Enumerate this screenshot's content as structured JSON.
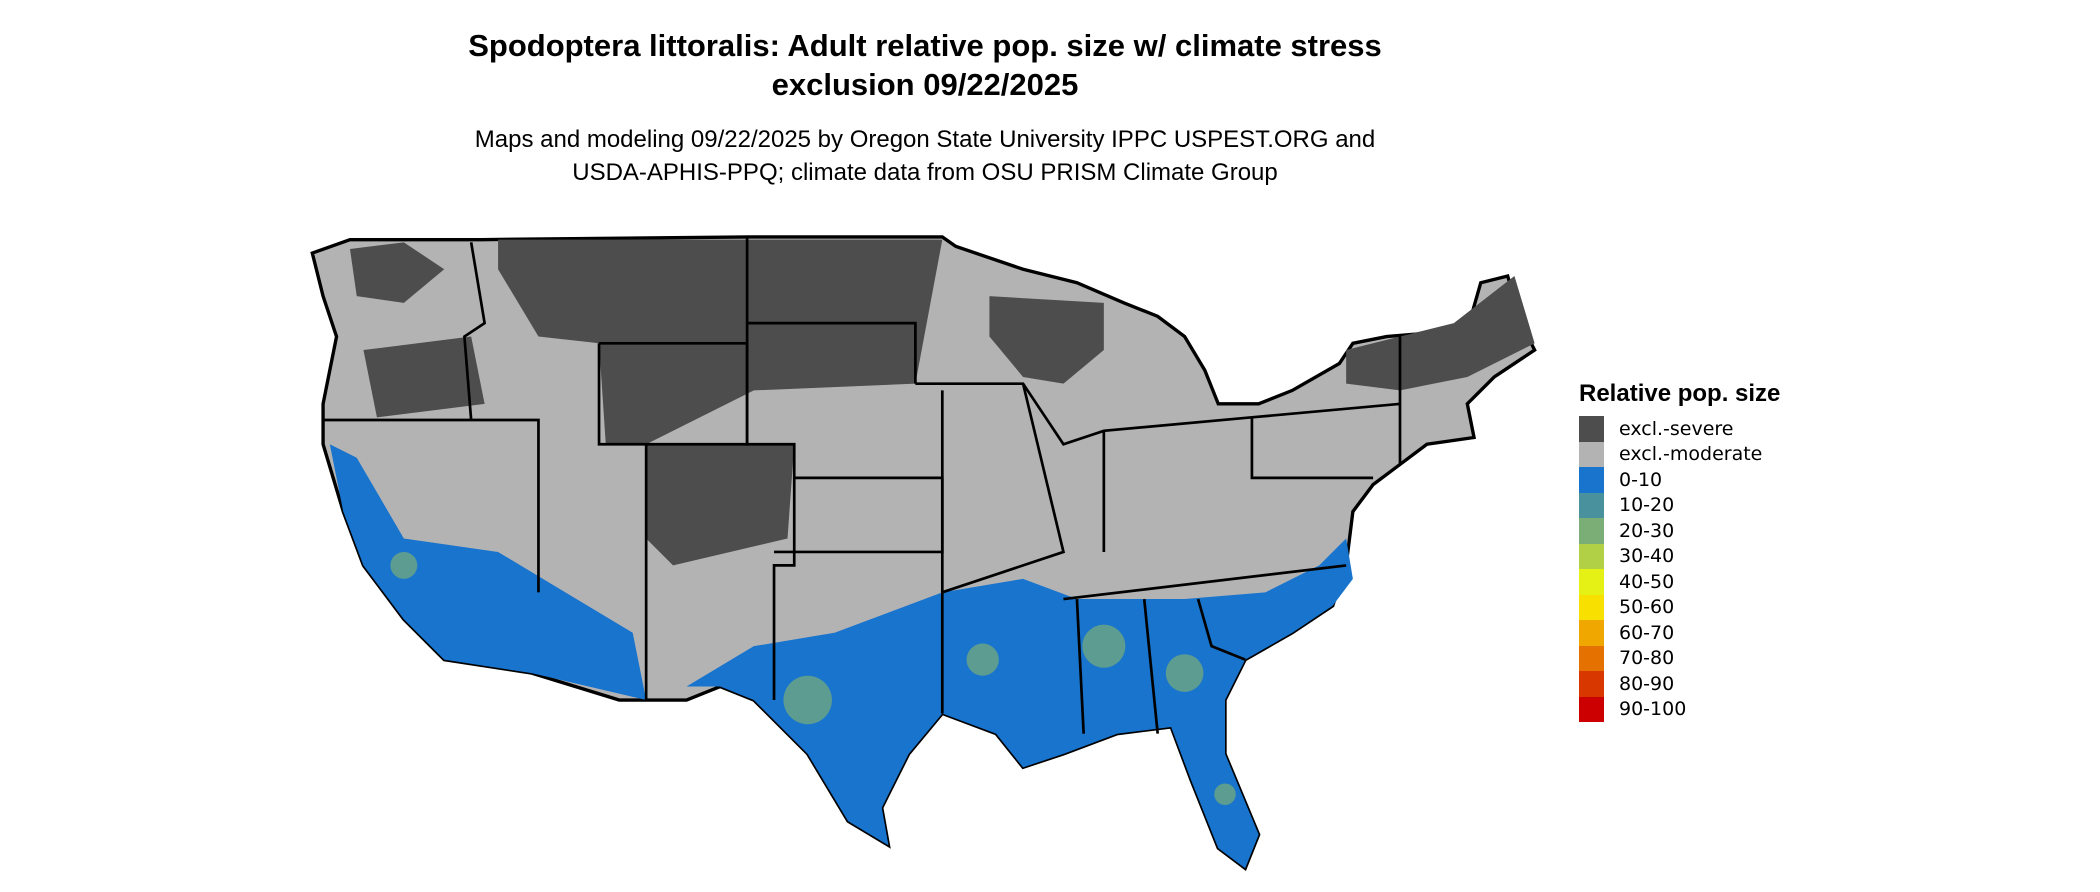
{
  "title_line1": "Spodoptera littoralis: Adult relative pop. size w/ climate stress",
  "title_line2": "exclusion 09/22/2025",
  "subtitle_line1": "Maps and modeling 09/22/2025 by Oregon State University IPPC USPEST.ORG and",
  "subtitle_line2": "USDA-APHIS-PPQ; climate data from OSU PRISM Climate Group",
  "legend": {
    "title": "Relative pop. size",
    "items": [
      {
        "label": "excl.-severe",
        "color": "#4d4d4d"
      },
      {
        "label": "excl.-moderate",
        "color": "#b3b3b3"
      },
      {
        "label": "0-10",
        "color": "#1874cd"
      },
      {
        "label": "10-20",
        "color": "#4a919e"
      },
      {
        "label": "20-30",
        "color": "#7aae76"
      },
      {
        "label": "30-40",
        "color": "#b2d045"
      },
      {
        "label": "40-50",
        "color": "#e5f014"
      },
      {
        "label": "50-60",
        "color": "#f8e000"
      },
      {
        "label": "60-70",
        "color": "#f0a800"
      },
      {
        "label": "70-80",
        "color": "#e57200"
      },
      {
        "label": "80-90",
        "color": "#d83800"
      },
      {
        "label": "90-100",
        "color": "#cc0000"
      }
    ]
  }
}
